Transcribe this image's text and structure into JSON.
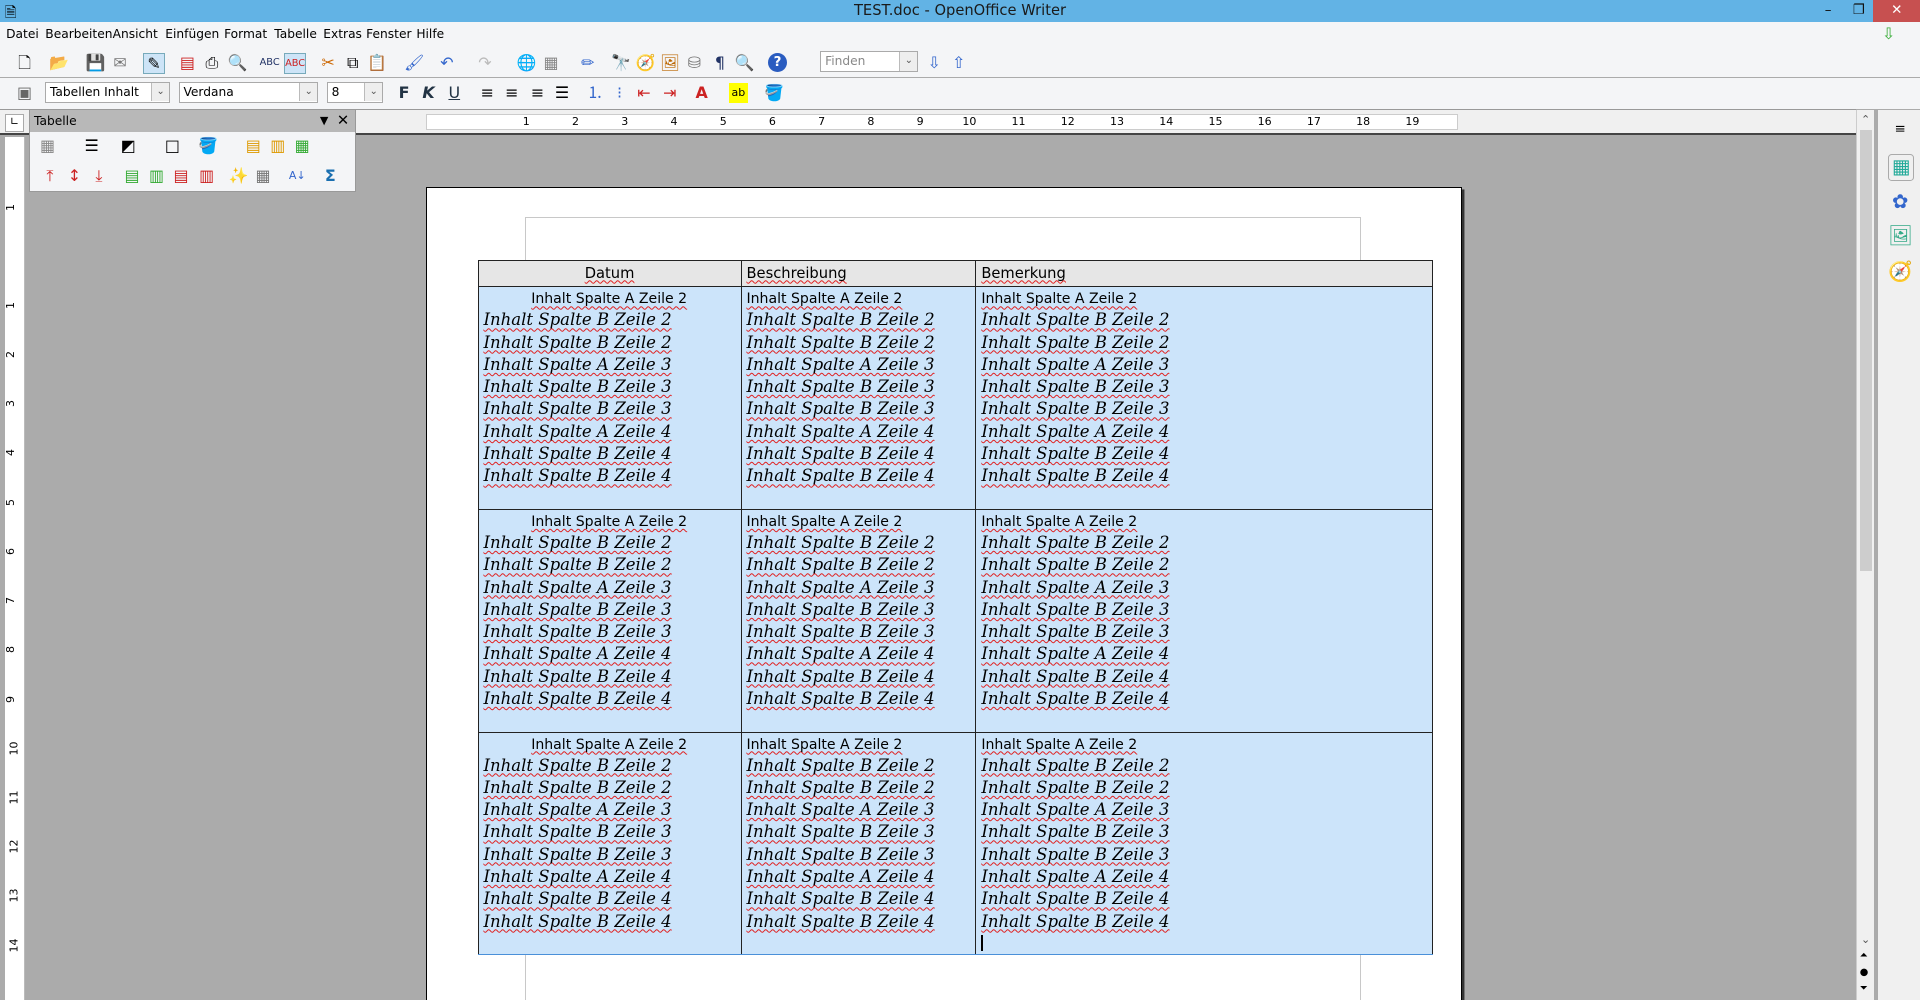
{
  "window": {
    "title": "TEST.doc - OpenOffice Writer",
    "minimize": "–",
    "restore": "❐",
    "close": "✕"
  },
  "menu": [
    "Datei",
    "Bearbeiten",
    "Ansicht",
    "Einfügen",
    "Format",
    "Tabelle",
    "Extras",
    "Fenster",
    "Hilfe"
  ],
  "toolbar": {
    "find_placeholder": "Finden"
  },
  "format_bar": {
    "style": "Tabellen Inhalt",
    "font": "Verdana",
    "size": "8",
    "bold": "F",
    "italic": "K",
    "underline": "U"
  },
  "floating_toolbar": {
    "title": "Tabelle"
  },
  "ruler": {
    "h_labels": [
      "1",
      "2",
      "3",
      "4",
      "5",
      "6",
      "7",
      "8",
      "9",
      "10",
      "11",
      "12",
      "13",
      "14",
      "15",
      "16",
      "17",
      "18",
      "19"
    ],
    "v_labels": [
      "1",
      "1",
      "2",
      "3",
      "4",
      "5",
      "6",
      "7",
      "8",
      "9",
      "10",
      "11",
      "12",
      "13",
      "14"
    ]
  },
  "table": {
    "headers": [
      "Datum",
      "Beschreibung",
      "Bemerkung"
    ],
    "rows": [
      {
        "cells": [
          {
            "first": "Inhalt Spalte A Zeile 2",
            "lines": [
              "Inhalt Spalte B Zeile 2",
              "Inhalt Spalte B Zeile 2",
              "Inhalt Spalte A Zeile 3",
              "Inhalt Spalte B Zeile 3",
              "Inhalt Spalte B Zeile 3",
              "Inhalt Spalte A Zeile 4",
              "Inhalt Spalte B Zeile 4",
              "Inhalt Spalte B Zeile 4"
            ]
          },
          {
            "first": "Inhalt Spalte A Zeile 2",
            "lines": [
              "Inhalt Spalte B Zeile 2",
              "Inhalt Spalte B Zeile 2",
              "Inhalt Spalte A Zeile 3",
              "Inhalt Spalte B Zeile 3",
              "Inhalt Spalte B Zeile 3",
              "Inhalt Spalte A Zeile 4",
              "Inhalt Spalte B Zeile 4",
              "Inhalt Spalte B Zeile 4"
            ]
          },
          {
            "first": "Inhalt Spalte A Zeile 2",
            "lines": [
              "Inhalt Spalte B Zeile 2",
              "Inhalt Spalte B Zeile 2",
              "Inhalt Spalte A Zeile 3",
              "Inhalt Spalte B Zeile 3",
              "Inhalt Spalte B Zeile 3",
              "Inhalt Spalte A Zeile 4",
              "Inhalt Spalte B Zeile 4",
              "Inhalt Spalte B Zeile 4"
            ]
          }
        ]
      },
      {
        "cells": [
          {
            "first": "Inhalt Spalte A Zeile 2",
            "lines": [
              "Inhalt Spalte B Zeile 2",
              "Inhalt Spalte B Zeile 2",
              "Inhalt Spalte A Zeile 3",
              "Inhalt Spalte B Zeile 3",
              "Inhalt Spalte B Zeile 3",
              "Inhalt Spalte A Zeile 4",
              "Inhalt Spalte B Zeile 4",
              "Inhalt Spalte B Zeile 4"
            ]
          },
          {
            "first": "Inhalt Spalte A Zeile 2",
            "lines": [
              "Inhalt Spalte B Zeile 2",
              "Inhalt Spalte B Zeile 2",
              "Inhalt Spalte A Zeile 3",
              "Inhalt Spalte B Zeile 3",
              "Inhalt Spalte B Zeile 3",
              "Inhalt Spalte A Zeile 4",
              "Inhalt Spalte B Zeile 4",
              "Inhalt Spalte B Zeile 4"
            ]
          },
          {
            "first": "Inhalt Spalte A Zeile 2",
            "lines": [
              "Inhalt Spalte B Zeile 2",
              "Inhalt Spalte B Zeile 2",
              "Inhalt Spalte A Zeile 3",
              "Inhalt Spalte B Zeile 3",
              "Inhalt Spalte B Zeile 3",
              "Inhalt Spalte A Zeile 4",
              "Inhalt Spalte B Zeile 4",
              "Inhalt Spalte B Zeile 4"
            ]
          }
        ]
      },
      {
        "cells": [
          {
            "first": "Inhalt Spalte A Zeile 2",
            "lines": [
              "Inhalt Spalte B Zeile 2",
              "Inhalt Spalte B Zeile 2",
              "Inhalt Spalte A Zeile 3",
              "Inhalt Spalte B Zeile 3",
              "Inhalt Spalte B Zeile 3",
              "Inhalt Spalte A Zeile 4",
              "Inhalt Spalte B Zeile 4",
              "Inhalt Spalte B Zeile 4"
            ]
          },
          {
            "first": "Inhalt Spalte A Zeile 2",
            "lines": [
              "Inhalt Spalte B Zeile 2",
              "Inhalt Spalte B Zeile 2",
              "Inhalt Spalte A Zeile 3",
              "Inhalt Spalte B Zeile 3",
              "Inhalt Spalte B Zeile 3",
              "Inhalt Spalte A Zeile 4",
              "Inhalt Spalte B Zeile 4",
              "Inhalt Spalte B Zeile 4"
            ]
          },
          {
            "first": "Inhalt Spalte A Zeile 2",
            "lines": [
              "Inhalt Spalte B Zeile 2",
              "Inhalt Spalte B Zeile 2",
              "Inhalt Spalte A Zeile 3",
              "Inhalt Spalte B Zeile 3",
              "Inhalt Spalte B Zeile 3",
              "Inhalt Spalte A Zeile 4",
              "Inhalt Spalte B Zeile 4",
              "Inhalt Spalte B Zeile 4"
            ]
          }
        ]
      }
    ]
  },
  "colors": {
    "titlebar": "#62b3e5",
    "selection": "#cce4fa",
    "header_cell": "#e6e6e6",
    "workspace": "#ababab"
  }
}
